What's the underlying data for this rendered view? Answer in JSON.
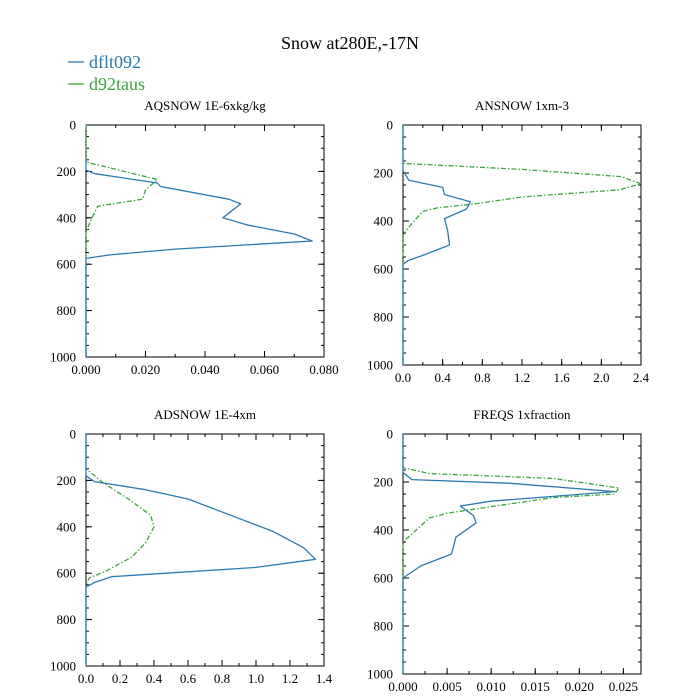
{
  "figure": {
    "title": "Snow at280E,-17N",
    "legend": [
      {
        "label": "dflt092",
        "color": "#2a7ab0",
        "dash": "solid"
      },
      {
        "label": "d92taus",
        "color": "#3aa53a",
        "dash": "dashed"
      }
    ]
  },
  "chart_data": [
    {
      "type": "line",
      "title": "AQSNOW  1E-6xkg/kg",
      "xlim": [
        0,
        0.08
      ],
      "ylim": [
        1000,
        0
      ],
      "xticks": [
        0,
        0.02,
        0.04,
        0.06,
        0.08
      ],
      "xtick_labels": [
        "0.000",
        "0.020",
        "0.040",
        "0.060",
        "0.080"
      ],
      "yticks": [
        0,
        200,
        400,
        600,
        800,
        1000
      ],
      "ytick_labels": [
        "0",
        "200",
        "400",
        "600",
        "800",
        "1000"
      ],
      "series": [
        {
          "name": "dflt092",
          "x": [
            0,
            0.0,
            0.003,
            0.024,
            0.025,
            0.048,
            0.052,
            0.046,
            0.054,
            0.07,
            0.076,
            0.03,
            0.008,
            0,
            0
          ],
          "y": [
            150,
            195,
            210,
            250,
            265,
            320,
            340,
            400,
            430,
            470,
            500,
            535,
            560,
            575,
            1000
          ]
        },
        {
          "name": "d92taus",
          "x": [
            0,
            0,
            0.024,
            0.02,
            0.019,
            0.004,
            0.002,
            0,
            0
          ],
          "y": [
            0,
            160,
            235,
            280,
            320,
            350,
            400,
            460,
            1000
          ]
        }
      ]
    },
    {
      "type": "line",
      "title": "ANSNOW  1xm-3",
      "xlim": [
        0,
        2.4
      ],
      "ylim": [
        1000,
        0
      ],
      "xticks": [
        0,
        0.4,
        0.8,
        1.2,
        1.6,
        2.0,
        2.4
      ],
      "xtick_labels": [
        "0.0",
        "0.4",
        "0.8",
        "1.2",
        "1.6",
        "2.0",
        "2.4"
      ],
      "yticks": [
        0,
        200,
        400,
        600,
        800,
        1000
      ],
      "ytick_labels": [
        "0",
        "200",
        "400",
        "600",
        "800",
        "1000"
      ],
      "series": [
        {
          "name": "dflt092",
          "x": [
            0,
            0,
            0.06,
            0.4,
            0.42,
            0.68,
            0.64,
            0.42,
            0.45,
            0.47,
            0.22,
            0.05,
            0,
            0
          ],
          "y": [
            0,
            190,
            230,
            260,
            290,
            320,
            350,
            390,
            440,
            500,
            540,
            565,
            580,
            1000
          ]
        },
        {
          "name": "d92taus",
          "x": [
            0,
            0,
            1.2,
            2.2,
            2.4,
            2.18,
            1.2,
            0.7,
            0.35,
            0.2,
            0.07,
            0,
            0
          ],
          "y": [
            0,
            160,
            185,
            215,
            245,
            270,
            300,
            330,
            345,
            360,
            420,
            460,
            1000
          ]
        }
      ]
    },
    {
      "type": "line",
      "title": "ADSNOW  1E-4xm",
      "xlim": [
        0,
        1.4
      ],
      "ylim": [
        1000,
        0
      ],
      "xticks": [
        0,
        0.2,
        0.4,
        0.6,
        0.8,
        1.0,
        1.2,
        1.4
      ],
      "xtick_labels": [
        "0.0",
        "0.2",
        "0.4",
        "0.6",
        "0.8",
        "1.0",
        "1.2",
        "1.4"
      ],
      "yticks": [
        0,
        200,
        400,
        600,
        800,
        1000
      ],
      "ytick_labels": [
        "0",
        "200",
        "400",
        "600",
        "800",
        "1000"
      ],
      "series": [
        {
          "name": "dflt092",
          "x": [
            0,
            0,
            0.05,
            0.35,
            0.6,
            0.85,
            1.1,
            1.28,
            1.35,
            1.0,
            0.15,
            0.05,
            0,
            0
          ],
          "y": [
            0,
            180,
            205,
            240,
            280,
            350,
            420,
            490,
            540,
            575,
            615,
            640,
            660,
            1000
          ]
        },
        {
          "name": "d92taus",
          "x": [
            0,
            0,
            0.1,
            0.25,
            0.38,
            0.4,
            0.35,
            0.27,
            0.12,
            0.02,
            0,
            0
          ],
          "y": [
            0,
            150,
            210,
            280,
            350,
            400,
            470,
            530,
            590,
            620,
            650,
            1000
          ]
        }
      ]
    },
    {
      "type": "line",
      "title": "FREQS  1xfraction",
      "xlim": [
        0,
        0.027
      ],
      "ylim": [
        1000,
        0
      ],
      "xticks": [
        0,
        0.005,
        0.01,
        0.015,
        0.02,
        0.025
      ],
      "xtick_labels": [
        "0.000",
        "0.005",
        "0.010",
        "0.015",
        "0.020",
        "0.025"
      ],
      "yticks": [
        0,
        200,
        400,
        600,
        800,
        1000
      ],
      "ytick_labels": [
        "0",
        "200",
        "400",
        "600",
        "800",
        "1000"
      ],
      "series": [
        {
          "name": "dflt092",
          "x": [
            0,
            0,
            0.001,
            0.012,
            0.024,
            0.01,
            0.0065,
            0.008,
            0.0083,
            0.006,
            0.0055,
            0.002,
            0,
            0
          ],
          "y": [
            0,
            160,
            190,
            205,
            240,
            280,
            300,
            340,
            370,
            430,
            500,
            550,
            600,
            1000
          ]
        },
        {
          "name": "d92taus",
          "x": [
            0,
            0,
            0.003,
            0.017,
            0.0245,
            0.024,
            0.017,
            0.0105,
            0.005,
            0.003,
            0.0015,
            0,
            0
          ],
          "y": [
            0,
            140,
            165,
            185,
            225,
            250,
            265,
            300,
            330,
            350,
            400,
            450,
            1000
          ]
        }
      ]
    }
  ]
}
